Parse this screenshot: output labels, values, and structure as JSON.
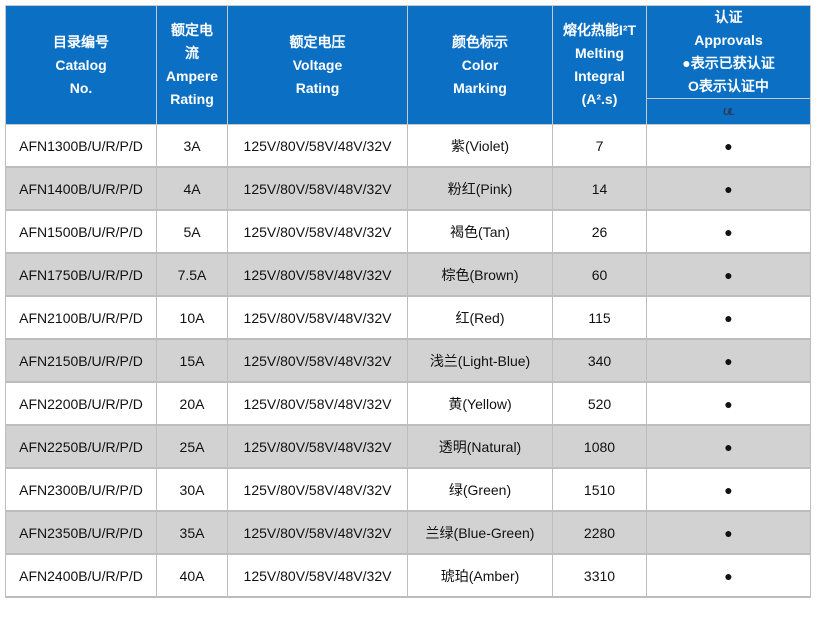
{
  "header": {
    "catalog": [
      "目录编号",
      "Catalog",
      "No."
    ],
    "ampere": [
      "额定电",
      "流",
      "Ampere",
      "Rating"
    ],
    "voltage": [
      "额定电压",
      "Voltage",
      "Rating"
    ],
    "color": [
      "颜色标示",
      "Color",
      "Marking"
    ],
    "melting": [
      "熔化热能I²T",
      "Melting",
      "Integral",
      "(A².s)"
    ],
    "approvals": [
      "认证",
      "Approvals",
      "●表示已获认证",
      "O表示认证中"
    ],
    "approval_logo": "UL"
  },
  "colors": {
    "header_bg": "#0b6fc4",
    "alt_row": "#d2d2d2"
  },
  "rows": [
    {
      "catalog": "AFN1300B/U/R/P/D",
      "ampere": "3A",
      "voltage": "125V/80V/58V/48V/32V",
      "color": "紫(Violet)",
      "i2t": "7",
      "approval": "●"
    },
    {
      "catalog": "AFN1400B/U/R/P/D",
      "ampere": "4A",
      "voltage": "125V/80V/58V/48V/32V",
      "color": "粉红(Pink)",
      "i2t": "14",
      "approval": "●"
    },
    {
      "catalog": "AFN1500B/U/R/P/D",
      "ampere": "5A",
      "voltage": "125V/80V/58V/48V/32V",
      "color": "褐色(Tan)",
      "i2t": "26",
      "approval": "●"
    },
    {
      "catalog": "AFN1750B/U/R/P/D",
      "ampere": "7.5A",
      "voltage": "125V/80V/58V/48V/32V",
      "color": "棕色(Brown)",
      "i2t": "60",
      "approval": "●"
    },
    {
      "catalog": "AFN2100B/U/R/P/D",
      "ampere": "10A",
      "voltage": "125V/80V/58V/48V/32V",
      "color": "红(Red)",
      "i2t": "115",
      "approval": "●"
    },
    {
      "catalog": "AFN2150B/U/R/P/D",
      "ampere": "15A",
      "voltage": "125V/80V/58V/48V/32V",
      "color": "浅兰(Light-Blue)",
      "i2t": "340",
      "approval": "●"
    },
    {
      "catalog": "AFN2200B/U/R/P/D",
      "ampere": "20A",
      "voltage": "125V/80V/58V/48V/32V",
      "color": "黄(Yellow)",
      "i2t": "520",
      "approval": "●"
    },
    {
      "catalog": "AFN2250B/U/R/P/D",
      "ampere": "25A",
      "voltage": "125V/80V/58V/48V/32V",
      "color": "透明(Natural)",
      "i2t": "1080",
      "approval": "●"
    },
    {
      "catalog": "AFN2300B/U/R/P/D",
      "ampere": "30A",
      "voltage": "125V/80V/58V/48V/32V",
      "color": "绿(Green)",
      "i2t": "1510",
      "approval": "●"
    },
    {
      "catalog": "AFN2350B/U/R/P/D",
      "ampere": "35A",
      "voltage": "125V/80V/58V/48V/32V",
      "color": "兰绿(Blue-Green)",
      "i2t": "2280",
      "approval": "●"
    },
    {
      "catalog": "AFN2400B/U/R/P/D",
      "ampere": "40A",
      "voltage": "125V/80V/58V/48V/32V",
      "color": "琥珀(Amber)",
      "i2t": "3310",
      "approval": "●"
    }
  ]
}
